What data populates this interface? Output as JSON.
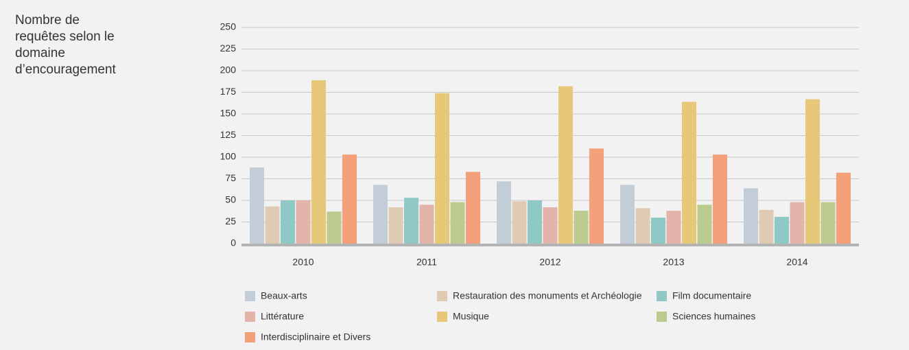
{
  "chart_data": {
    "type": "bar",
    "title": "Nombre de requêtes selon le domaine d’encouragement",
    "categories": [
      "2010",
      "2011",
      "2012",
      "2013",
      "2014"
    ],
    "series": [
      {
        "name": "Beaux-arts",
        "color": "#c3cdd8",
        "values": [
          88,
          68,
          72,
          68,
          64
        ]
      },
      {
        "name": "Restauration des monuments et Archéologie",
        "color": "#dfcbb4",
        "values": [
          43,
          42,
          49,
          41,
          39
        ]
      },
      {
        "name": "Film documentaire",
        "color": "#8fc8c4",
        "values": [
          50,
          53,
          50,
          30,
          31
        ]
      },
      {
        "name": "Littérature",
        "color": "#e3b5aa",
        "values": [
          50,
          45,
          42,
          38,
          48
        ]
      },
      {
        "name": "Musique",
        "color": "#e7c879",
        "values": [
          189,
          174,
          182,
          164,
          167
        ]
      },
      {
        "name": "Sciences humaines",
        "color": "#bbca8d",
        "values": [
          37,
          48,
          38,
          45,
          48
        ]
      },
      {
        "name": "Interdisciplinaire et Divers",
        "color": "#f4a07b",
        "values": [
          103,
          83,
          110,
          103,
          82
        ]
      }
    ],
    "ylim": [
      0,
      250
    ],
    "yticks": [
      0,
      25,
      50,
      75,
      100,
      125,
      150,
      175,
      200,
      225,
      250
    ],
    "grid": true
  }
}
